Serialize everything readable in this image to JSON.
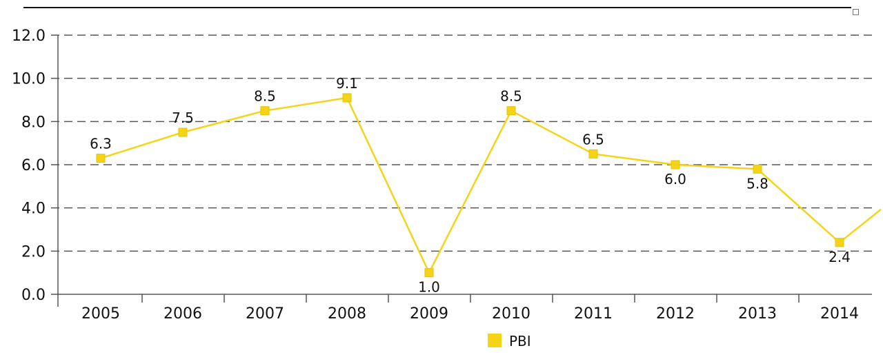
{
  "chart_data": {
    "type": "line",
    "categories": [
      "2005",
      "2006",
      "2007",
      "2008",
      "2009",
      "2010",
      "2011",
      "2012",
      "2013",
      "2014"
    ],
    "series": [
      {
        "name": "PBI",
        "values": [
          6.3,
          7.5,
          8.5,
          9.1,
          1.0,
          8.5,
          6.5,
          6.0,
          5.8,
          2.4
        ],
        "data_labels": [
          "6.3",
          "7.5",
          "8.5",
          "9.1",
          "1.0",
          "8.5",
          "6.5",
          "6.0",
          "5.8",
          "2.4"
        ],
        "color": "#f5d418"
      }
    ],
    "y_ticks": [
      "0.0",
      "2.0",
      "4.0",
      "6.0",
      "8.0",
      "10.0",
      "12.0"
    ],
    "ylim": [
      0,
      12
    ],
    "grid": true,
    "grid_style": "dashed",
    "legend_position": "bottom-center",
    "title": "",
    "xlabel": "",
    "ylabel": ""
  }
}
